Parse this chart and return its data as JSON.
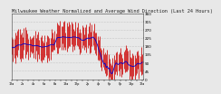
{
  "title": "Milwaukee Weather Normalized and Average Wind Direction (Last 24 Hours)",
  "title_fontsize": 3.8,
  "background_color": "#e8e8e8",
  "plot_bg_color": "#e8e8e8",
  "grid_color": "#aaaaaa",
  "n_points": 120,
  "ylim": [
    0,
    360
  ],
  "yticks": [
    0,
    45,
    90,
    135,
    180,
    225,
    270,
    315,
    360
  ],
  "red_color": "#cc0000",
  "blue_color": "#0000cc",
  "bar_linewidth": 0.55,
  "line_width": 0.6,
  "seed": 17
}
